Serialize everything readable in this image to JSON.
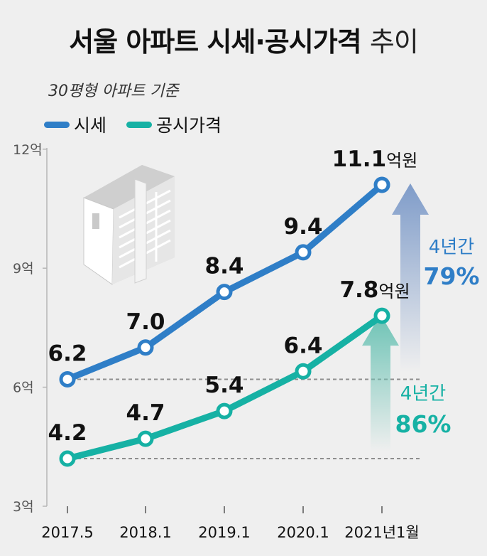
{
  "header": {
    "title_bold": "서울 아파트 시세·공시가격",
    "title_light": "추이",
    "subtitle": "30평형 아파트 기준"
  },
  "legend": [
    {
      "label": "시세",
      "color": "#2f7ec7"
    },
    {
      "label": "공시가격",
      "color": "#16b1a4"
    }
  ],
  "chart_data": {
    "type": "line",
    "categories": [
      "2017.5",
      "2018.1",
      "2019.1",
      "2020.1",
      "2021년1월"
    ],
    "series": [
      {
        "name": "시세",
        "color": "#2f7ec7",
        "values": [
          6.2,
          7.0,
          8.4,
          9.4,
          11.1
        ],
        "labels": [
          "6.2",
          "7.0",
          "8.4",
          "9.4",
          "11.1"
        ],
        "last_unit": "억원"
      },
      {
        "name": "공시가격",
        "color": "#16b1a4",
        "values": [
          4.2,
          4.7,
          5.4,
          6.4,
          7.8
        ],
        "labels": [
          "4.2",
          "4.7",
          "5.4",
          "6.4",
          "7.8"
        ],
        "last_unit": "억원"
      }
    ],
    "yticks": [
      {
        "value": 3,
        "label": "3억"
      },
      {
        "value": 6,
        "label": "6억"
      },
      {
        "value": 9,
        "label": "9억"
      },
      {
        "value": 12,
        "label": "12억"
      }
    ],
    "ylim": [
      3,
      12
    ],
    "annotations": [
      {
        "series": "시세",
        "label": "4년간",
        "value": "79%",
        "color": "#2f7ec7"
      },
      {
        "series": "공시가격",
        "label": "4년간",
        "value": "86%",
        "color": "#16b1a4"
      }
    ]
  }
}
